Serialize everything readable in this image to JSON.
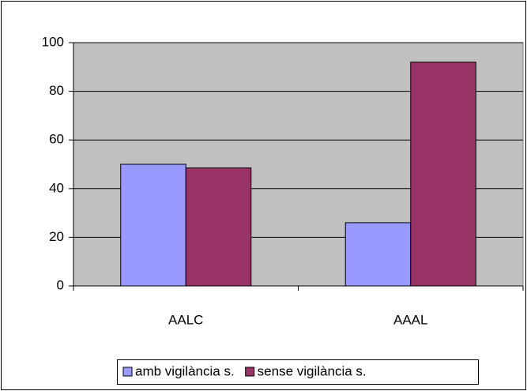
{
  "chart_data": {
    "type": "bar",
    "categories": [
      "AALC",
      "AAAL"
    ],
    "series": [
      {
        "name": "amb vigilància s.",
        "color": "#9999ff",
        "values": [
          50,
          26
        ]
      },
      {
        "name": "sense vigilància s.",
        "color": "#993366",
        "values": [
          48.5,
          92
        ]
      }
    ],
    "ylim": [
      0,
      100
    ],
    "yticks": [
      0,
      20,
      40,
      60,
      80,
      100
    ],
    "grid": true,
    "legend": "bottom"
  }
}
